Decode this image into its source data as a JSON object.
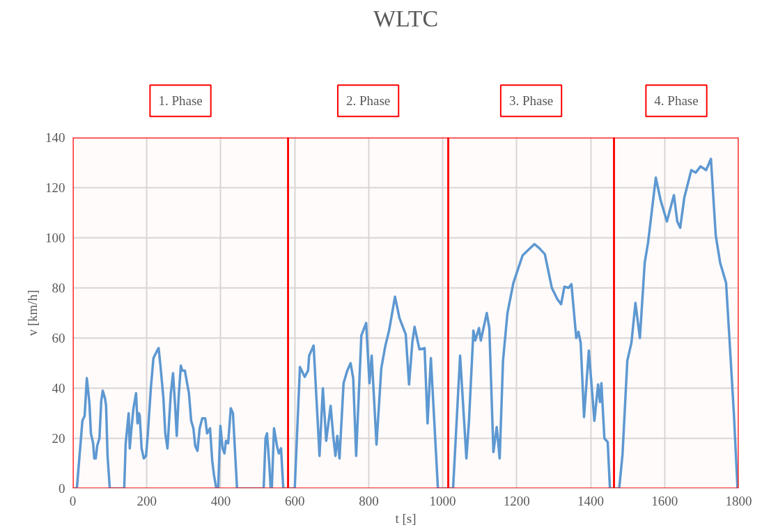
{
  "chart_data": {
    "type": "line",
    "title": "WLTC",
    "xlabel": "t [s]",
    "ylabel": "v [km/h]",
    "xlim": [
      0,
      1800
    ],
    "xticks": [
      0,
      200,
      400,
      600,
      800,
      1000,
      1200,
      1400,
      1600,
      1800
    ],
    "ylim": [
      0,
      140
    ],
    "yticks": [
      0,
      20,
      40,
      60,
      80,
      100,
      120,
      140
    ],
    "grid": true,
    "marker": "none",
    "line_style": "solid",
    "bands": [
      {
        "axis": "x",
        "from": 0,
        "to": 582,
        "label": "1. Phase",
        "color": "#ff0000"
      },
      {
        "axis": "x",
        "from": 582,
        "to": 1015,
        "label": "2. Phase",
        "color": "#ff0000"
      },
      {
        "axis": "x",
        "from": 1015,
        "to": 1463,
        "label": "3. Phase",
        "color": "#ff0000"
      },
      {
        "axis": "x",
        "from": 1463,
        "to": 1800,
        "label": "4. Phase",
        "color": "#ff0000"
      }
    ],
    "series": [
      {
        "color": "#5b9bd5",
        "x": [
          0,
          11,
          26,
          32,
          38,
          45,
          49,
          55,
          58,
          62,
          66,
          72,
          77,
          81,
          87,
          90,
          94,
          100,
          139,
          143,
          151,
          154,
          158,
          164,
          171,
          175,
          179,
          181,
          186,
          192,
          198,
          203,
          211,
          218,
          228,
          232,
          237,
          245,
          250,
          256,
          260,
          265,
          271,
          277,
          281,
          286,
          292,
          296,
          303,
          309,
          314,
          320,
          326,
          331,
          337,
          343,
          350,
          358,
          363,
          371,
          377,
          382,
          388,
          393,
          399,
          405,
          410,
          414,
          420,
          427,
          433,
          444,
          516,
          521,
          525,
          531,
          535,
          538,
          544,
          552,
          557,
          563,
          569,
          600,
          614,
          627,
          636,
          639,
          651,
          667,
          676,
          685,
          697,
          704,
          710,
          715,
          721,
          732,
          742,
          751,
          758,
          766,
          780,
          793,
          802,
          808,
          821,
          834,
          845,
          855,
          871,
          883,
          900,
          909,
          918,
          924,
          937,
          951,
          959,
          968,
          987,
          1028,
          1047,
          1064,
          1071,
          1083,
          1088,
          1098,
          1103,
          1111,
          1119,
          1126,
          1137,
          1146,
          1154,
          1163,
          1175,
          1191,
          1216,
          1248,
          1260,
          1276,
          1295,
          1310,
          1320,
          1329,
          1340,
          1348,
          1361,
          1367,
          1373,
          1382,
          1395,
          1410,
          1420,
          1425,
          1429,
          1437,
          1446,
          1452,
          1477,
          1486,
          1499,
          1510,
          1521,
          1533,
          1546,
          1555,
          1576,
          1589,
          1606,
          1625,
          1634,
          1642,
          1653,
          1672,
          1684,
          1697,
          1712,
          1725,
          1738,
          1750,
          1766,
          1775,
          1787,
          1797,
          1800
        ],
        "values": [
          0,
          0,
          27,
          29,
          44,
          34,
          22,
          18,
          12,
          12,
          17,
          20,
          35,
          39,
          36,
          33,
          13,
          0,
          0,
          18,
          30,
          16,
          23,
          32,
          38,
          26,
          30,
          29,
          16,
          12,
          13,
          22,
          40,
          52,
          55,
          56,
          49,
          36,
          22,
          16,
          26,
          38,
          46,
          32,
          21,
          36,
          49,
          47,
          47,
          42,
          38,
          27,
          24,
          17,
          15,
          24,
          28,
          28,
          22,
          24,
          11,
          5,
          0,
          0,
          25,
          16,
          14,
          19,
          18,
          32,
          30,
          0,
          0,
          20,
          22,
          10,
          0,
          0,
          24,
          17,
          14,
          16,
          0,
          0,
          48.5,
          44.5,
          47,
          53,
          57,
          13,
          40,
          19,
          33,
          21,
          13,
          21,
          12,
          42,
          47,
          50,
          44,
          13,
          61,
          66,
          42,
          53,
          17.5,
          48,
          57,
          63,
          76.5,
          68,
          61.5,
          41.5,
          58.5,
          64.5,
          55.5,
          56,
          26,
          52,
          0,
          0,
          53,
          12,
          27,
          63,
          59,
          64,
          59,
          64.5,
          70,
          64,
          14.5,
          24.5,
          12,
          51,
          70,
          82,
          93,
          97.5,
          96,
          93.5,
          80,
          75.5,
          73.5,
          80.5,
          80,
          81.5,
          60,
          62.5,
          58,
          28.5,
          55,
          27,
          41.5,
          34.5,
          42,
          20,
          18.5,
          0,
          0,
          13.5,
          51,
          58,
          74,
          60,
          90,
          98,
          124,
          115,
          106.5,
          117,
          106.5,
          104,
          116,
          127,
          126,
          128.5,
          127,
          131.5,
          101,
          90,
          82,
          60,
          30,
          0,
          0
        ]
      }
    ]
  }
}
